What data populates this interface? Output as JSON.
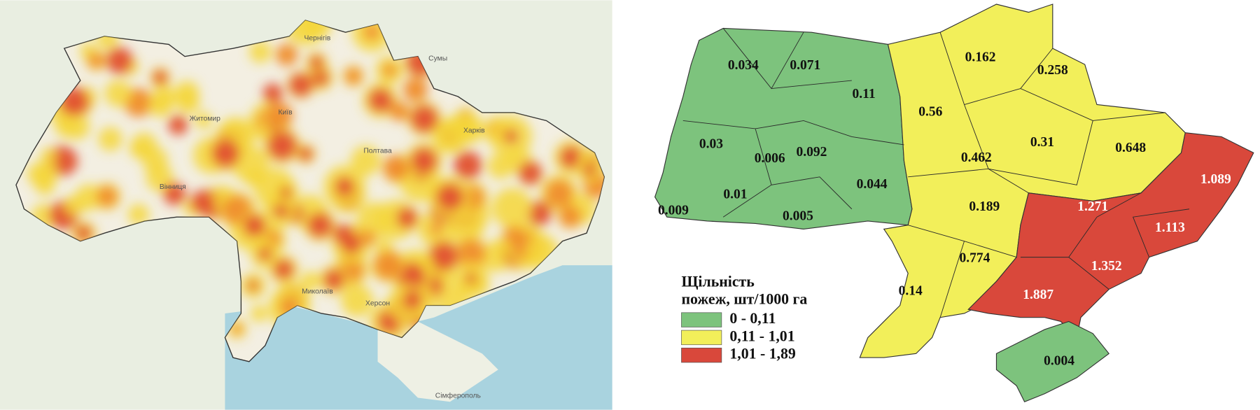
{
  "left_map": {
    "places": [
      "Київ",
      "Харків",
      "Сумы",
      "Чернігів",
      "Житомир",
      "Вінниця",
      "Полтава",
      "Миколаїв",
      "Херсон",
      "Сімферополь"
    ]
  },
  "right_map": {
    "legend": {
      "title": [
        "Щільність",
        "пожеж, шт/1000 га"
      ],
      "items": [
        {
          "label": "0 - 0,11",
          "color": "#7dc37d",
          "text_color": "#111111",
          "regions": [
            "0.034",
            "0.071",
            "0.11",
            "0.03",
            "0.006",
            "0.092",
            "0.044",
            "0.01",
            "0.009",
            "0.005",
            "0.004"
          ]
        },
        {
          "label": "0,11 - 1,01",
          "color": "#f2ef5a",
          "text_color": "#111111",
          "regions": [
            "0.162",
            "0.258",
            "0.56",
            "0.31",
            "0.648",
            "0.462",
            "0.189",
            "0.774",
            "0.14"
          ]
        },
        {
          "label": "1,01 - 1,89",
          "color": "#d9483b",
          "text_color": "#ffffff",
          "regions": [
            "1.089",
            "1.271",
            "1.113",
            "1.352",
            "1.887"
          ]
        }
      ]
    }
  }
}
